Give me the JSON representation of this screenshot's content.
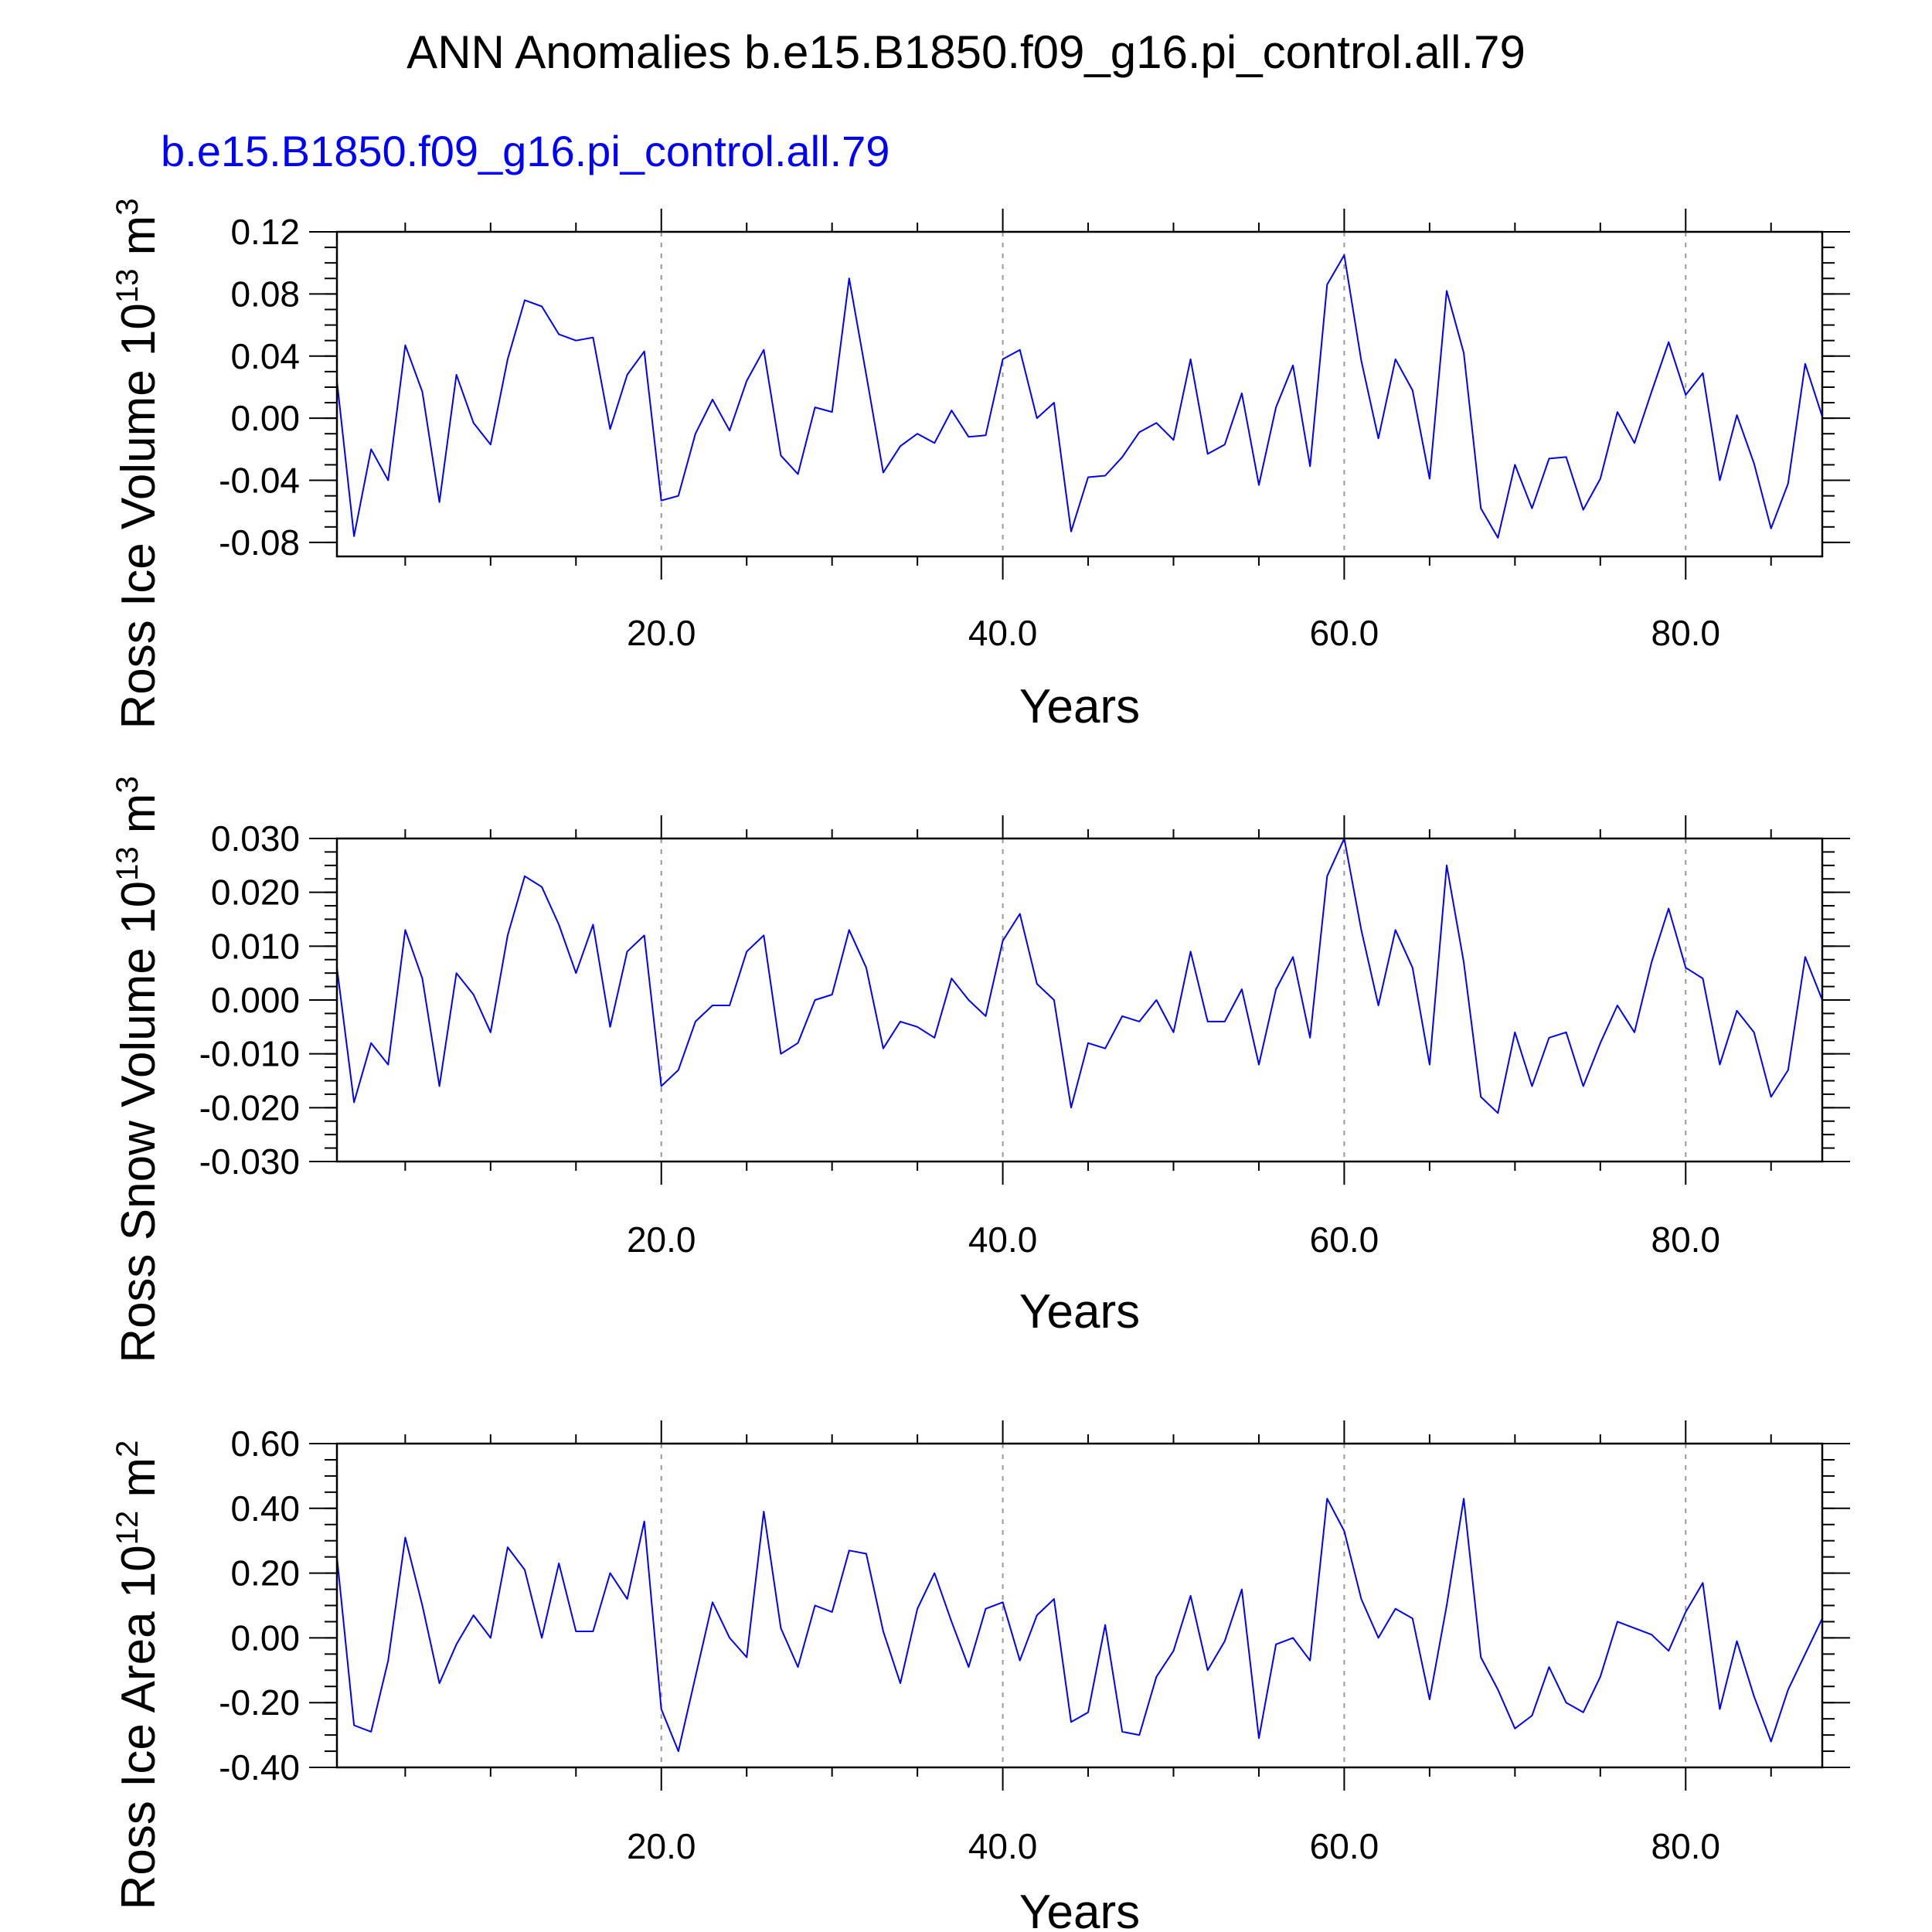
{
  "title": "ANN Anomalies b.e15.B1850.f09_g16.pi_control.all.79",
  "subtitle": "b.e15.B1850.f09_g16.pi_control.all.79",
  "colors": {
    "series": "#0000ff",
    "text": "#000000",
    "subtitle": "#0000ff",
    "frame": "#000000",
    "gridline": "#999999"
  },
  "chart_data": [
    {
      "type": "line",
      "ylabel": "Ross Ice Volume 10^13 m^3",
      "ylabel_main": "Ross Ice Volume 10",
      "ylabel_exp": "13",
      "ylabel_unit": " m",
      "ylabel_unit_exp": "3",
      "xlabel": "Years",
      "xlim": [
        1,
        88
      ],
      "ylim": [
        -0.089,
        0.12
      ],
      "xticks": [
        20,
        40,
        60,
        80
      ],
      "xtick_labels": [
        "20.0",
        "40.0",
        "60.0",
        "80.0"
      ],
      "yticks": [
        0.12,
        0.08,
        0.04,
        0.0,
        -0.04,
        -0.08
      ],
      "ytick_labels": [
        "0.12",
        "0.08",
        "0.04",
        "0.00",
        "-0.04",
        "-0.08"
      ],
      "grid": "vertical dashed at major x ticks",
      "series": [
        {
          "x_start": 1,
          "values": [
            0.024,
            -0.076,
            -0.02,
            -0.04,
            0.047,
            0.017,
            -0.054,
            0.028,
            -0.003,
            -0.017,
            0.038,
            0.076,
            0.072,
            0.054,
            0.05,
            0.052,
            -0.007,
            0.028,
            0.043,
            -0.053,
            -0.05,
            -0.01,
            0.012,
            -0.008,
            0.024,
            0.044,
            -0.024,
            -0.036,
            0.007,
            0.004,
            0.09,
            0.028,
            -0.035,
            -0.018,
            -0.01,
            -0.016,
            0.005,
            -0.012,
            -0.011,
            0.038,
            0.044,
            0.0,
            0.01,
            -0.073,
            -0.038,
            -0.037,
            -0.025,
            -0.009,
            -0.003,
            -0.014,
            0.038,
            -0.023,
            -0.017,
            0.016,
            -0.043,
            0.007,
            0.034,
            -0.031,
            0.086,
            0.105,
            0.037,
            -0.013,
            0.038,
            0.018,
            -0.039,
            0.082,
            0.042,
            -0.058,
            -0.077,
            -0.03,
            -0.058,
            -0.026,
            -0.025,
            -0.059,
            -0.039,
            0.004,
            -0.016,
            0.017,
            0.049,
            0.015,
            0.029,
            -0.04,
            0.002,
            -0.029,
            -0.071,
            -0.042,
            0.035,
            0.001
          ]
        }
      ]
    },
    {
      "type": "line",
      "ylabel": "Ross Snow Volume 10^13 m^3",
      "ylabel_main": "Ross Snow Volume 10",
      "ylabel_exp": "13",
      "ylabel_unit": " m",
      "ylabel_unit_exp": "3",
      "xlabel": "Years",
      "xlim": [
        1,
        88
      ],
      "ylim": [
        -0.03,
        0.03
      ],
      "xticks": [
        20,
        40,
        60,
        80
      ],
      "xtick_labels": [
        "20.0",
        "40.0",
        "60.0",
        "80.0"
      ],
      "yticks": [
        0.03,
        0.02,
        0.01,
        0.0,
        -0.01,
        -0.02,
        -0.03
      ],
      "ytick_labels": [
        "0.030",
        "0.020",
        "0.010",
        "0.000",
        "-0.010",
        "-0.020",
        "-0.030"
      ],
      "grid": "vertical dashed at major x ticks",
      "series": [
        {
          "x_start": 1,
          "values": [
            0.006,
            -0.019,
            -0.008,
            -0.012,
            0.013,
            0.004,
            -0.016,
            0.005,
            0.001,
            -0.006,
            0.012,
            0.023,
            0.021,
            0.014,
            0.005,
            0.014,
            -0.005,
            0.009,
            0.012,
            -0.016,
            -0.013,
            -0.004,
            -0.001,
            -0.001,
            0.009,
            0.012,
            -0.01,
            -0.008,
            0.0,
            0.001,
            0.013,
            0.006,
            -0.009,
            -0.004,
            -0.005,
            -0.007,
            0.004,
            0.0,
            -0.003,
            0.011,
            0.016,
            0.003,
            0.0,
            -0.02,
            -0.008,
            -0.009,
            -0.003,
            -0.004,
            0.0,
            -0.006,
            0.009,
            -0.004,
            -0.004,
            0.002,
            -0.012,
            0.002,
            0.008,
            -0.007,
            0.023,
            0.03,
            0.013,
            -0.001,
            0.013,
            0.006,
            -0.012,
            0.025,
            0.007,
            -0.018,
            -0.021,
            -0.006,
            -0.016,
            -0.007,
            -0.006,
            -0.016,
            -0.008,
            -0.001,
            -0.006,
            0.007,
            0.017,
            0.006,
            0.004,
            -0.012,
            -0.002,
            -0.006,
            -0.018,
            -0.013,
            0.008,
            0.0
          ]
        }
      ]
    },
    {
      "type": "line",
      "ylabel": "Ross Ice Area 10^12 m^2",
      "ylabel_main": "Ross Ice Area 10",
      "ylabel_exp": "12",
      "ylabel_unit": " m",
      "ylabel_unit_exp": "2",
      "xlabel": "Years",
      "xlim": [
        1,
        88
      ],
      "ylim": [
        -0.4,
        0.6
      ],
      "xticks": [
        20,
        40,
        60,
        80
      ],
      "xtick_labels": [
        "20.0",
        "40.0",
        "60.0",
        "80.0"
      ],
      "yticks": [
        0.6,
        0.4,
        0.2,
        0.0,
        -0.2,
        -0.4
      ],
      "ytick_labels": [
        "0.60",
        "0.40",
        "0.20",
        "0.00",
        "-0.20",
        "-0.40"
      ],
      "grid": "vertical dashed at major x ticks",
      "series": [
        {
          "x_start": 1,
          "values": [
            0.25,
            -0.27,
            -0.29,
            -0.07,
            0.31,
            0.1,
            -0.14,
            -0.02,
            0.07,
            0.0,
            0.28,
            0.21,
            0.0,
            0.23,
            0.02,
            0.02,
            0.2,
            0.12,
            0.36,
            -0.22,
            -0.35,
            -0.12,
            0.11,
            0.0,
            -0.06,
            0.39,
            0.03,
            -0.09,
            0.1,
            0.08,
            0.27,
            0.26,
            0.02,
            -0.14,
            0.09,
            0.2,
            0.05,
            -0.09,
            0.09,
            0.11,
            -0.07,
            0.07,
            0.12,
            -0.26,
            -0.23,
            0.04,
            -0.29,
            -0.3,
            -0.12,
            -0.04,
            0.13,
            -0.1,
            -0.01,
            0.15,
            -0.31,
            -0.02,
            0.0,
            -0.07,
            0.43,
            0.33,
            0.12,
            0.0,
            0.09,
            0.06,
            -0.19,
            0.1,
            0.43,
            -0.06,
            -0.16,
            -0.28,
            -0.24,
            -0.09,
            -0.2,
            -0.23,
            -0.12,
            0.05,
            0.03,
            0.01,
            -0.04,
            0.08,
            0.17,
            -0.22,
            -0.01,
            -0.18,
            -0.32,
            -0.16,
            -0.05,
            0.06
          ]
        }
      ]
    }
  ]
}
